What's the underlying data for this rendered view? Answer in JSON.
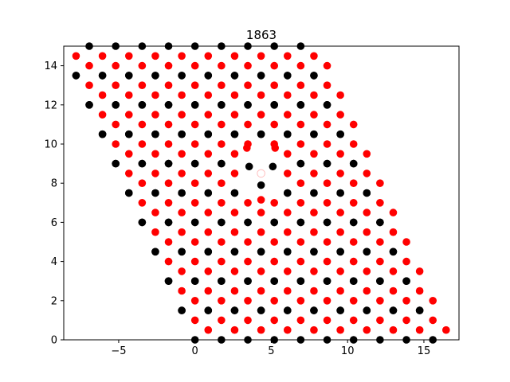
{
  "chart_data": {
    "type": "scatter",
    "title": "1863",
    "xlabel": "",
    "ylabel": "",
    "xlim": [
      -8.6,
      17.3
    ],
    "ylim": [
      0,
      15
    ],
    "xticks": [
      -5,
      0,
      5,
      10,
      15
    ],
    "yticks": [
      0,
      2,
      4,
      6,
      8,
      10,
      12,
      14
    ],
    "grid": false,
    "colors": {
      "red": "#ff0000",
      "black": "#000000",
      "axes": "#000000"
    },
    "lattice": {
      "a1": [
        1.732,
        0
      ],
      "a2": [
        -0.866,
        1.5
      ],
      "red_offsets": [
        [
          0,
          1
        ],
        [
          0.866,
          0.5
        ]
      ],
      "black_offsets": [
        [
          0,
          0
        ],
        [
          -0.866,
          1.5
        ]
      ],
      "i_range": [
        0,
        9
      ],
      "j_range": [
        0,
        9
      ]
    },
    "defect": {
      "vacancy": [
        4.33,
        8.5
      ],
      "distorted_points": [
        {
          "x": 3.55,
          "y": 8.85,
          "color": "black"
        },
        {
          "x": 5.1,
          "y": 8.85,
          "color": "black"
        },
        {
          "x": 4.33,
          "y": 7.9,
          "color": "black"
        },
        {
          "x": 3.4,
          "y": 9.8,
          "color": "red"
        },
        {
          "x": 5.25,
          "y": 9.8,
          "color": "red"
        },
        {
          "x": 4.33,
          "y": 7.15,
          "color": "red"
        }
      ]
    }
  }
}
